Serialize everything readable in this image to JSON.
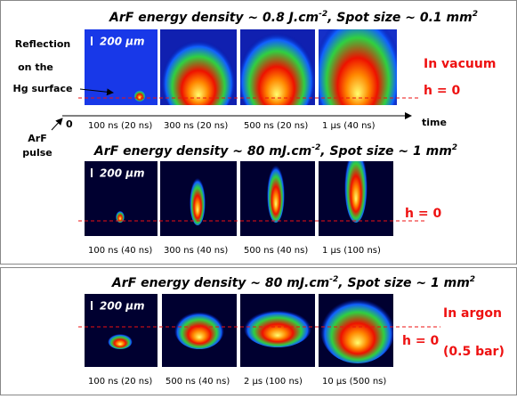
{
  "panels": [
    {
      "title": [
        "ArF energy density ~ 0.8 J.cm",
        "-2",
        ", Spot size ~ 0.1 mm",
        "2"
      ],
      "scale_bar": "200 µm",
      "h_label": "h = 0",
      "condition": [
        "In vacuum"
      ],
      "images": [
        {
          "label": "100 ns (20 ns)"
        },
        {
          "label": "300 ns (20 ns)"
        },
        {
          "label": "500 ns (20 ns)"
        },
        {
          "label": "1 µs (40 ns)"
        }
      ]
    },
    {
      "title": [
        "ArF energy density ~ 80 mJ.cm",
        "-2",
        ", Spot size ~ 1 mm",
        "2"
      ],
      "scale_bar": "200 µm",
      "h_label": "h = 0",
      "images": [
        {
          "label": "100 ns (40 ns)"
        },
        {
          "label": "300 ns (40 ns)"
        },
        {
          "label": "500 ns (40 ns)"
        },
        {
          "label": "1 µs (100 ns)"
        }
      ]
    },
    {
      "title": [
        "ArF energy density ~ 80 mJ.cm",
        "-2",
        ", Spot size ~ 1 mm",
        "2"
      ],
      "scale_bar": "200 µm",
      "h_label": "h = 0",
      "condition": [
        "In argon",
        "(0.5 bar)"
      ],
      "images": [
        {
          "label": "100 ns (20 ns)"
        },
        {
          "label": "500 ns (40 ns)"
        },
        {
          "label": "2 µs (100 ns)"
        },
        {
          "label": "10 µs (500 ns)"
        }
      ]
    }
  ],
  "annotations": {
    "reflection": [
      "Reflection",
      "on the",
      "Hg surface"
    ],
    "origin": "0",
    "time": "time",
    "pulse": [
      "ArF",
      "pulse"
    ]
  }
}
